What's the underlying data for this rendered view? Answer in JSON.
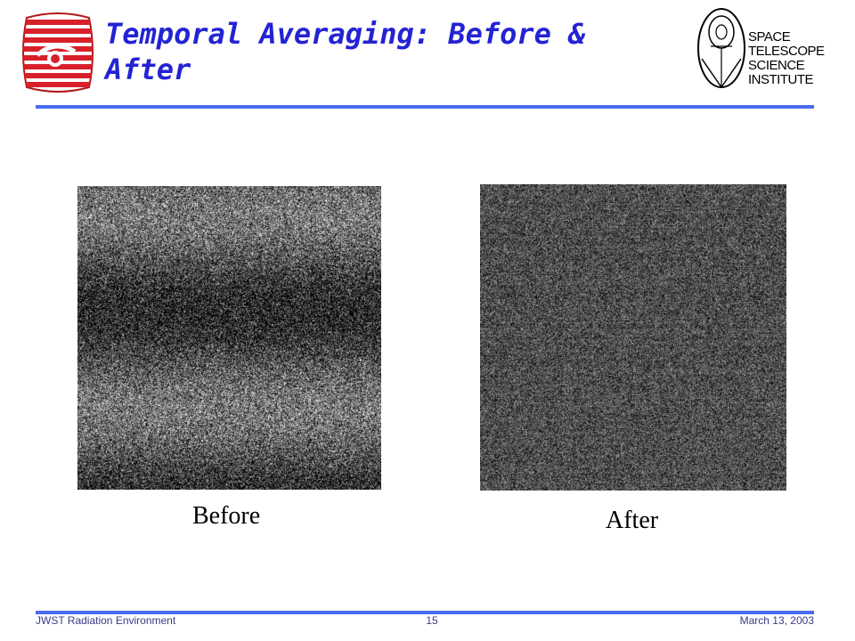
{
  "slide": {
    "title": "Temporal Averaging: Before & After",
    "colors": {
      "title": "#2323d4",
      "rule": "#4a6cf0",
      "logo_red": "#d8202a"
    }
  },
  "logos": {
    "left_icon": "stsci-red-striped-logo-icon",
    "right_icon": "stsci-telescope-logo-icon",
    "right_text_lines": [
      "SPACE",
      "TELESCOPE",
      "SCIENCE",
      "INSTITUTE"
    ]
  },
  "images": {
    "before": {
      "caption": "Before"
    },
    "after": {
      "caption": "After"
    }
  },
  "footer": {
    "left": "JWST Radiation Environment",
    "page_number": "15",
    "date": "March 13, 2003"
  }
}
